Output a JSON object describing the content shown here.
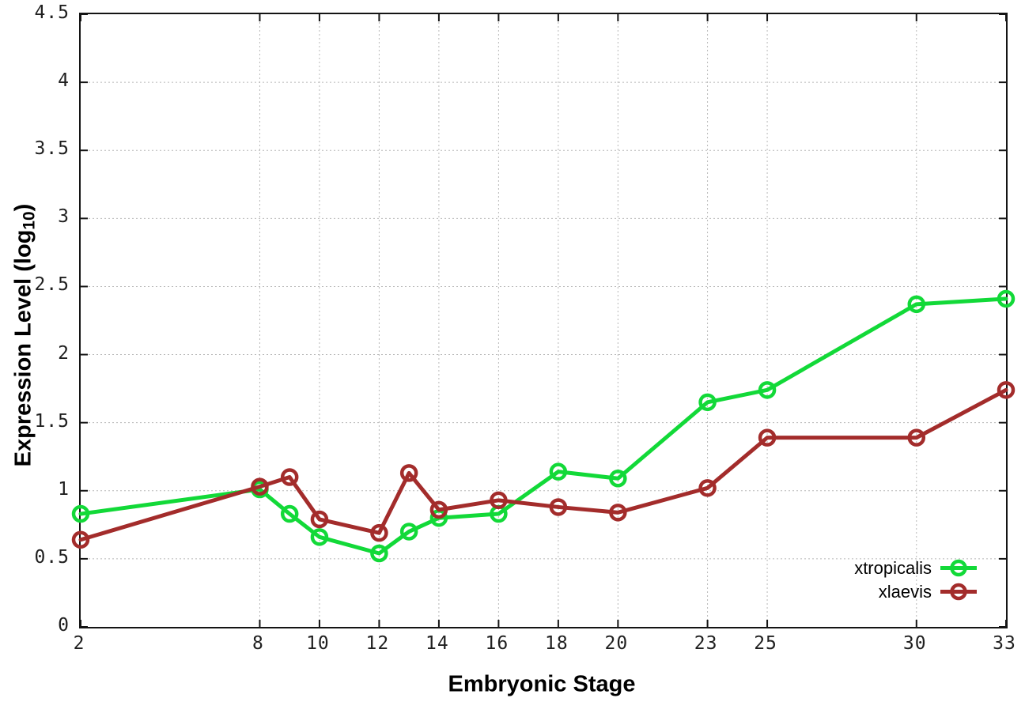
{
  "figure": {
    "background": "#ffffff",
    "border_color": "#141414",
    "grid_color": "#b8b8b8",
    "tick_label_color": "#202020",
    "tick_length": 9,
    "line_width": 5,
    "marker_radius": 9,
    "marker_stroke": 4.5
  },
  "chart_data": {
    "type": "line",
    "title": "",
    "xlabel": "Embryonic Stage",
    "ylabel": "Expression Level (log10)",
    "ylabel_text": "Expression Level (log",
    "ylabel_subscript": "10",
    "ylabel_suffix": ")",
    "xlim": [
      2,
      33
    ],
    "ylim": [
      0,
      4.5
    ],
    "x_ticks": [
      2,
      8,
      10,
      12,
      14,
      16,
      18,
      20,
      23,
      25,
      30,
      33
    ],
    "x_tick_labels": [
      "2",
      "8",
      "10",
      "12",
      "14",
      "16",
      "18",
      "20",
      "23",
      "25",
      "30",
      "33"
    ],
    "y_ticks": [
      0,
      0.5,
      1,
      1.5,
      2,
      2.5,
      3,
      3.5,
      4,
      4.5
    ],
    "y_tick_labels": [
      "0",
      "0.5",
      "1",
      "1.5",
      "2",
      "2.5",
      "3",
      "3.5",
      "4",
      "4.5"
    ],
    "grid": true,
    "legend_position": "inside-bottom-right",
    "marker": "open-circle",
    "x": [
      2,
      8,
      9,
      10,
      12,
      13,
      14,
      16,
      18,
      20,
      23,
      25,
      30,
      33
    ],
    "series": [
      {
        "name": "xtropicalis",
        "color": "#12d938",
        "values": [
          0.83,
          1.01,
          0.83,
          0.66,
          0.54,
          0.7,
          0.8,
          0.83,
          1.14,
          1.09,
          1.65,
          1.74,
          2.37,
          2.41
        ]
      },
      {
        "name": "xlaevis",
        "color": "#a32c2b",
        "values": [
          0.64,
          1.03,
          1.1,
          0.79,
          0.69,
          1.13,
          0.86,
          0.93,
          0.88,
          0.84,
          1.02,
          1.39,
          1.39,
          1.74
        ]
      }
    ]
  }
}
